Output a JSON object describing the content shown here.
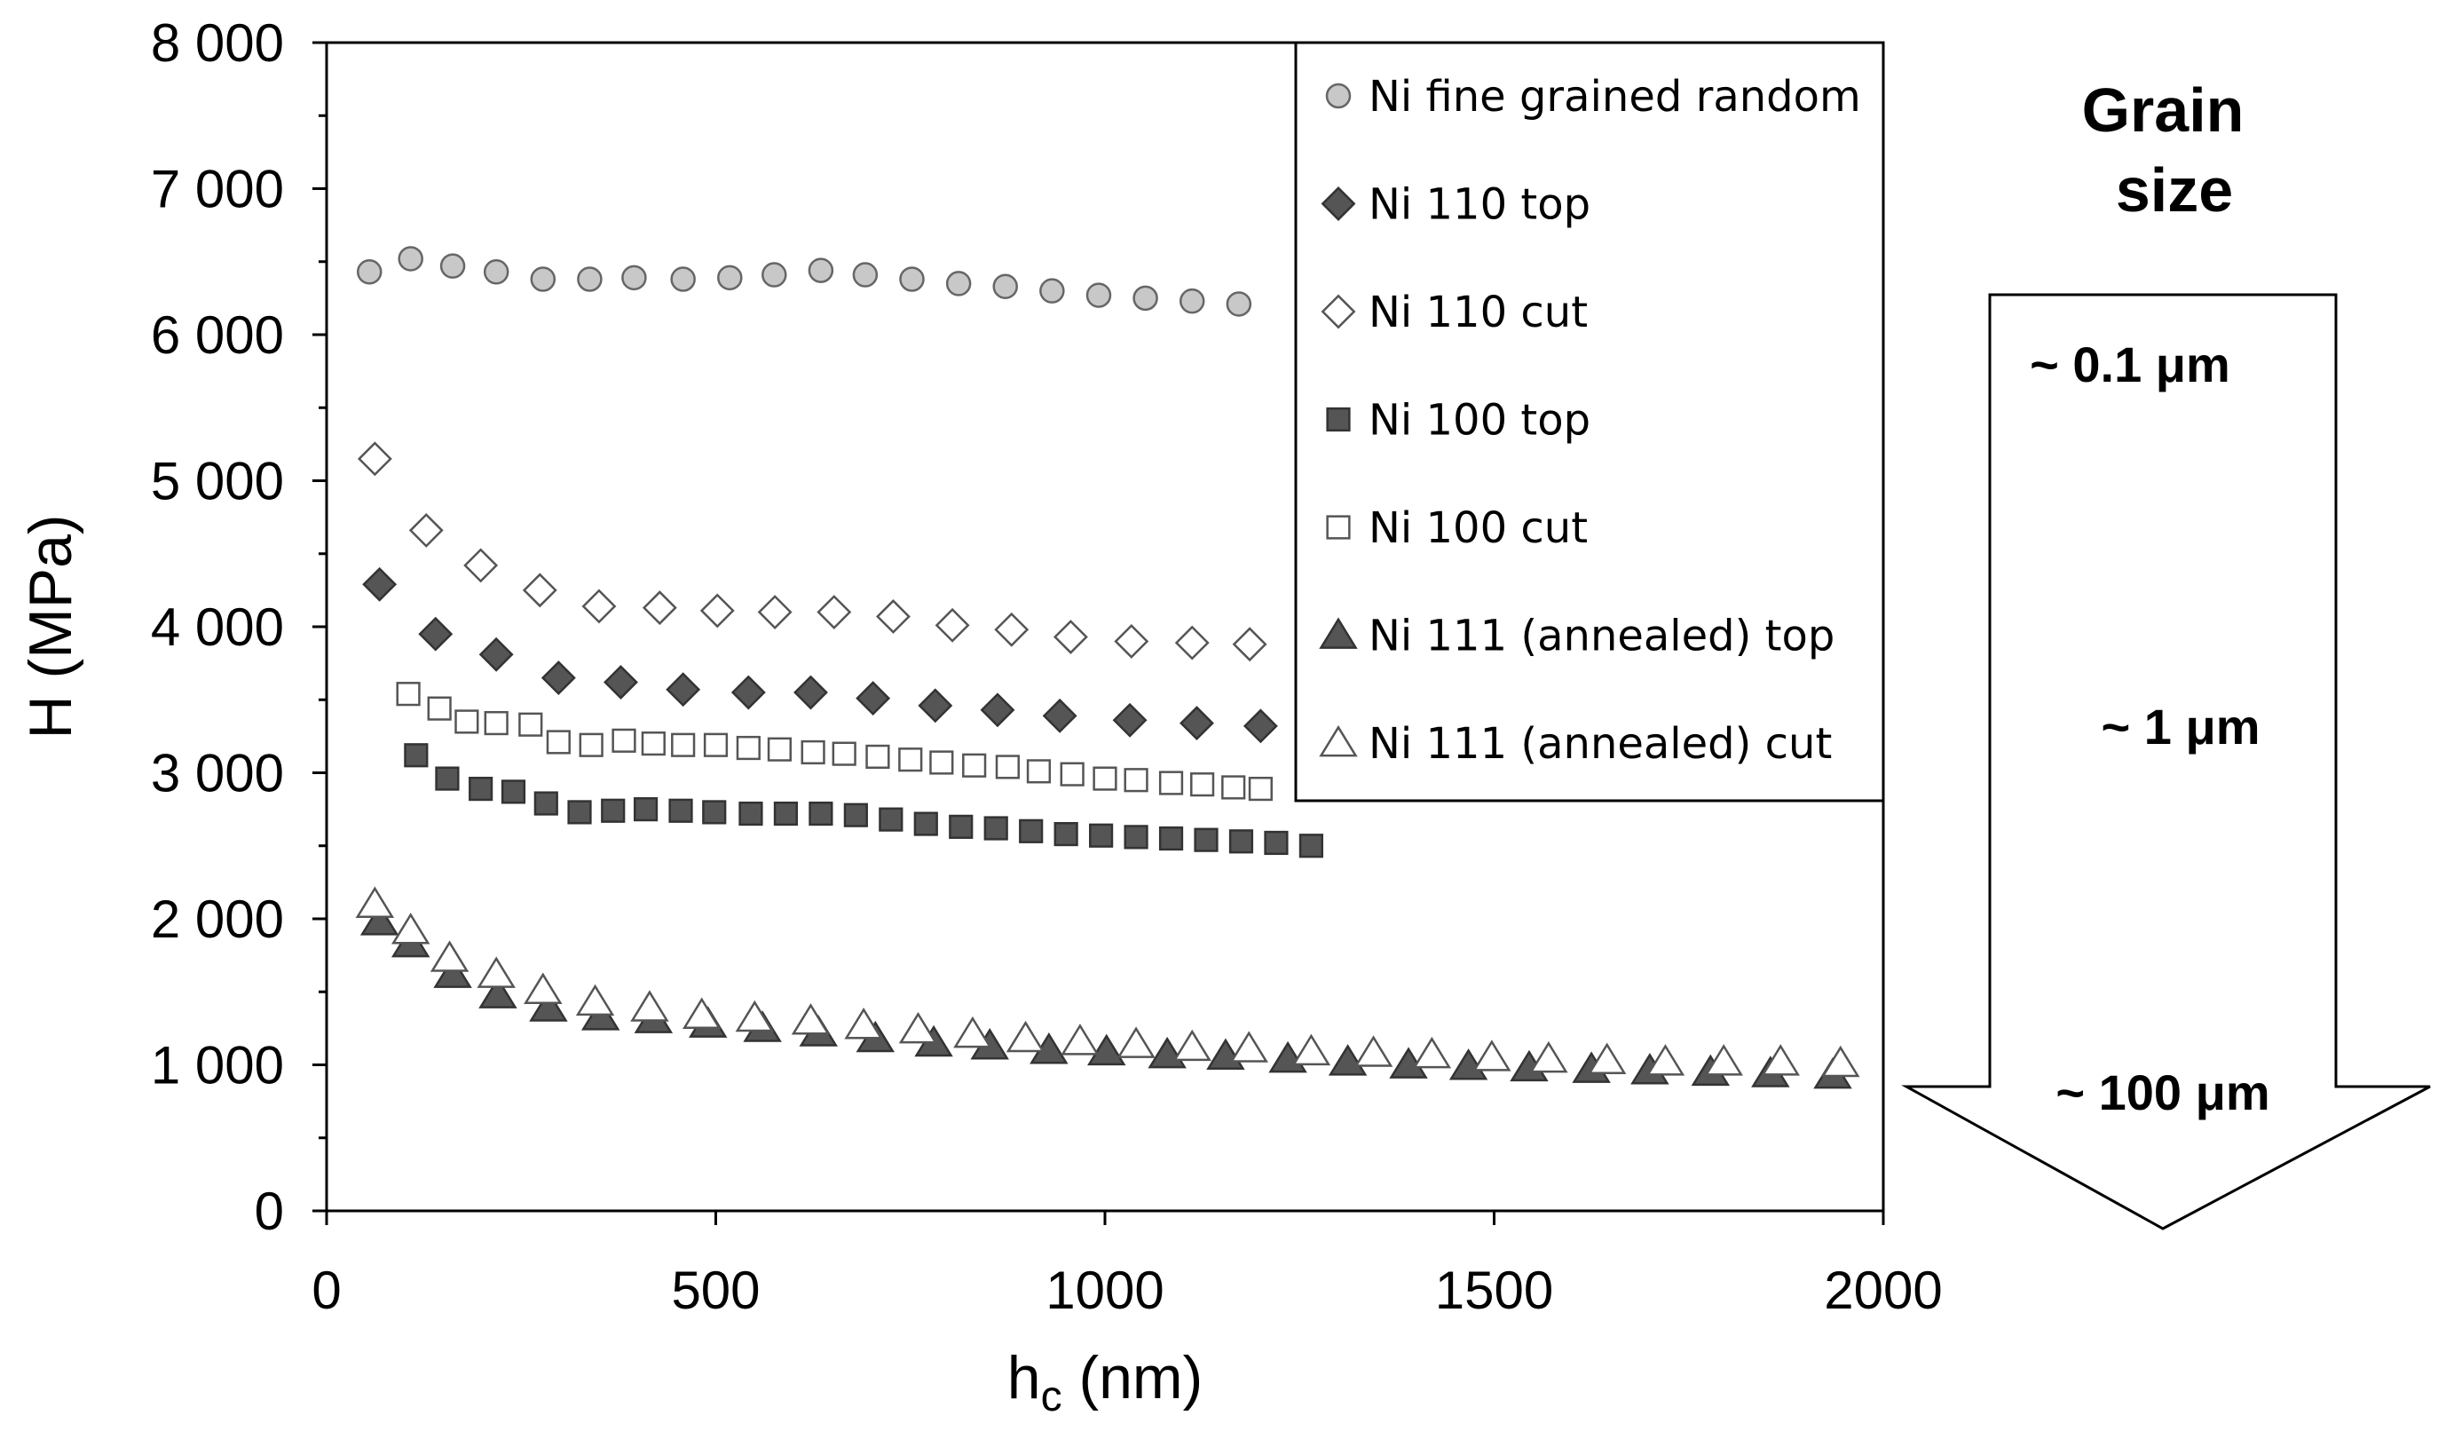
{
  "chart_data": {
    "type": "scatter",
    "title": "",
    "xlabel": "h",
    "xlabel_subscript": "c",
    "xlabel_unit": " (nm)",
    "ylabel": "H (MPa)",
    "xlim": [
      0,
      2000
    ],
    "ylim": [
      0,
      8000
    ],
    "x_ticks": [
      0,
      500,
      1000,
      1500,
      2000
    ],
    "x_tick_labels": [
      "0",
      "500",
      "1000",
      "1500",
      "2000"
    ],
    "y_ticks": [
      0,
      1000,
      2000,
      3000,
      4000,
      5000,
      6000,
      7000,
      8000
    ],
    "y_tick_labels": [
      "0",
      "1 000",
      "2 000",
      "3 000",
      "4 000",
      "5 000",
      "6 000",
      "7 000",
      "8 000"
    ],
    "grid": false,
    "legend_position": "top-right",
    "series": [
      {
        "name": "Ni fine grained random",
        "marker": "circle",
        "fill": "#c8c8c8",
        "stroke": "#666666",
        "x": [
          55,
          108,
          162,
          218,
          278,
          338,
          395,
          458,
          518,
          575,
          635,
          692,
          752,
          812,
          872,
          932,
          992,
          1052,
          1112,
          1172
        ],
        "y": [
          6430,
          6520,
          6470,
          6430,
          6380,
          6380,
          6390,
          6380,
          6390,
          6410,
          6440,
          6410,
          6380,
          6350,
          6330,
          6300,
          6270,
          6250,
          6230,
          6210
        ]
      },
      {
        "name": "Ni 110 top",
        "marker": "diamond",
        "fill": "#555555",
        "stroke": "#333333",
        "x": [
          68,
          140,
          218,
          298,
          378,
          458,
          542,
          622,
          702,
          782,
          862,
          942,
          1032,
          1118,
          1200
        ],
        "y": [
          4290,
          3950,
          3810,
          3650,
          3620,
          3570,
          3550,
          3550,
          3510,
          3460,
          3430,
          3390,
          3360,
          3340,
          3320
        ]
      },
      {
        "name": "Ni 110 cut",
        "marker": "diamond",
        "fill": "#ffffff",
        "stroke": "#555555",
        "x": [
          62,
          128,
          198,
          274,
          350,
          428,
          502,
          576,
          652,
          728,
          804,
          880,
          956,
          1034,
          1112,
          1186
        ],
        "y": [
          5150,
          4660,
          4420,
          4250,
          4140,
          4130,
          4110,
          4100,
          4100,
          4070,
          4010,
          3980,
          3930,
          3900,
          3890,
          3880
        ]
      },
      {
        "name": "Ni 100 top",
        "marker": "square",
        "fill": "#555555",
        "stroke": "#333333",
        "x": [
          115,
          155,
          198,
          240,
          282,
          325,
          368,
          410,
          455,
          498,
          545,
          590,
          635,
          680,
          725,
          770,
          815,
          860,
          905,
          950,
          995,
          1040,
          1085,
          1130,
          1175,
          1220,
          1265
        ],
        "y": [
          3120,
          2960,
          2890,
          2870,
          2790,
          2730,
          2740,
          2750,
          2740,
          2730,
          2720,
          2720,
          2720,
          2710,
          2680,
          2650,
          2630,
          2620,
          2600,
          2580,
          2570,
          2560,
          2550,
          2540,
          2530,
          2520,
          2500
        ]
      },
      {
        "name": "Ni 100 cut",
        "marker": "square",
        "fill": "#ffffff",
        "stroke": "#555555",
        "x": [
          105,
          145,
          180,
          218,
          262,
          298,
          340,
          382,
          420,
          458,
          500,
          542,
          582,
          625,
          665,
          708,
          750,
          790,
          832,
          875,
          915,
          958,
          1000,
          1040,
          1085,
          1125,
          1165,
          1200
        ],
        "y": [
          3540,
          3440,
          3350,
          3340,
          3330,
          3210,
          3190,
          3220,
          3200,
          3190,
          3190,
          3170,
          3160,
          3140,
          3130,
          3110,
          3090,
          3070,
          3050,
          3040,
          3010,
          2990,
          2960,
          2950,
          2930,
          2920,
          2900,
          2890
        ]
      },
      {
        "name": "Ni 111 (annealed) top",
        "marker": "triangle",
        "fill": "#555555",
        "stroke": "#333333",
        "x": [
          68,
          108,
          162,
          220,
          285,
          352,
          420,
          490,
          560,
          632,
          705,
          780,
          852,
          928,
          1002,
          1080,
          1155,
          1235,
          1312,
          1390,
          1467,
          1545,
          1625,
          1700,
          1778,
          1855,
          1935
        ],
        "y": [
          1980,
          1830,
          1620,
          1480,
          1390,
          1330,
          1310,
          1280,
          1250,
          1220,
          1180,
          1150,
          1130,
          1100,
          1090,
          1070,
          1060,
          1040,
          1020,
          1000,
          990,
          980,
          970,
          960,
          950,
          940,
          930
        ]
      },
      {
        "name": "Ni 111 (annealed) cut",
        "marker": "triangle",
        "fill": "#ffffff",
        "stroke": "#555555",
        "x": [
          62,
          108,
          158,
          218,
          278,
          345,
          415,
          482,
          550,
          622,
          690,
          760,
          830,
          898,
          968,
          1040,
          1112,
          1185,
          1265,
          1345,
          1420,
          1497,
          1570,
          1645,
          1720,
          1795,
          1868,
          1945
        ],
        "y": [
          2100,
          1920,
          1730,
          1620,
          1510,
          1430,
          1390,
          1340,
          1320,
          1300,
          1270,
          1240,
          1210,
          1180,
          1160,
          1140,
          1120,
          1110,
          1090,
          1080,
          1070,
          1050,
          1040,
          1030,
          1020,
          1020,
          1020,
          1010
        ]
      }
    ]
  },
  "annotation": {
    "title": "Grain size",
    "title_line1": "Grain",
    "title_line2": "size",
    "labels": [
      "~ 0.1 μm",
      "~ 1 μm",
      "~ 100 μm"
    ]
  }
}
